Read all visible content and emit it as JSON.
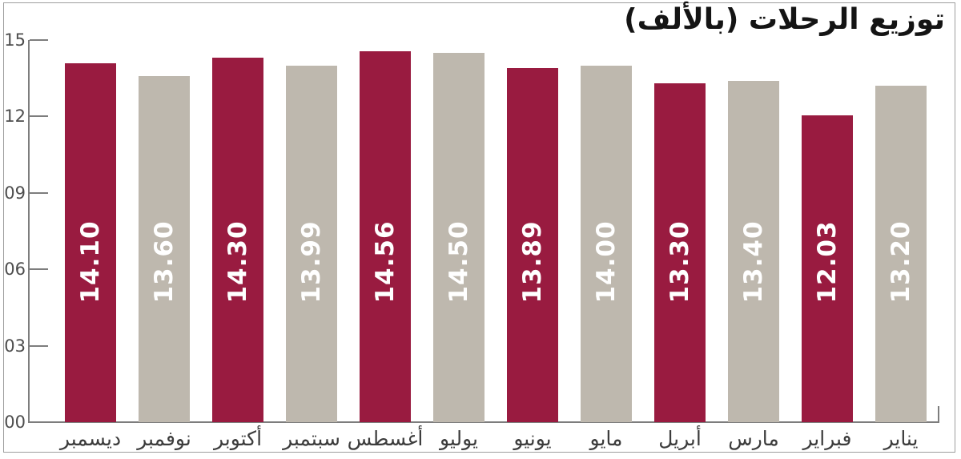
{
  "chart": {
    "title": "توزيع الرحلات (بالألف)"
  },
  "chart_data": {
    "type": "bar",
    "title": "توزيع الرحلات (بالألف)",
    "title_translation": "Distribution of trips (in thousands)",
    "orientation": "vertical",
    "x_order_note": "RTL chart: January at far right, December at far left",
    "categories": [
      "ديسمبر",
      "نوفمبر",
      "أكتوبر",
      "سبتمبر",
      "أغسطس",
      "يوليو",
      "يونيو",
      "مايو",
      "أبريل",
      "مارس",
      "فبراير",
      "يناير"
    ],
    "categories_translation": [
      "December",
      "November",
      "October",
      "September",
      "August",
      "July",
      "June",
      "May",
      "April",
      "March",
      "February",
      "January"
    ],
    "values": [
      14.1,
      13.6,
      14.3,
      13.99,
      14.56,
      14.5,
      13.89,
      14.0,
      13.3,
      13.4,
      12.03,
      13.2
    ],
    "value_labels": [
      "14.10",
      "13.60",
      "14.30",
      "13.99",
      "14.56",
      "14.50",
      "13.89",
      "14.00",
      "13.30",
      "13.40",
      "12.03",
      "13.20"
    ],
    "bar_colors": [
      "#991B40",
      "#BEB8AE",
      "#991B40",
      "#BEB8AE",
      "#991B40",
      "#BEB8AE",
      "#991B40",
      "#BEB8AE",
      "#991B40",
      "#BEB8AE",
      "#991B40",
      "#BEB8AE"
    ],
    "ylim": [
      0,
      15
    ],
    "yticks": [
      {
        "label": "15",
        "value": 15
      },
      {
        "label": "12",
        "value": 12
      },
      {
        "label": "09",
        "value": 9
      },
      {
        "label": "06",
        "value": 6
      },
      {
        "label": "03",
        "value": 3
      },
      {
        "label": "00",
        "value": 0
      }
    ],
    "grid": false,
    "legend": null,
    "colors": {
      "bar_primary": "#991B40",
      "bar_secondary": "#BEB8AE",
      "value_label_text": "#FFFFFF",
      "axis_line": "#7D7D7D",
      "tick_label_text": "#4D4D4D",
      "category_label_text": "#3C3C3C",
      "title_text": "#141414",
      "background": "#FFFFFF",
      "border": "#9E9E9E"
    }
  }
}
